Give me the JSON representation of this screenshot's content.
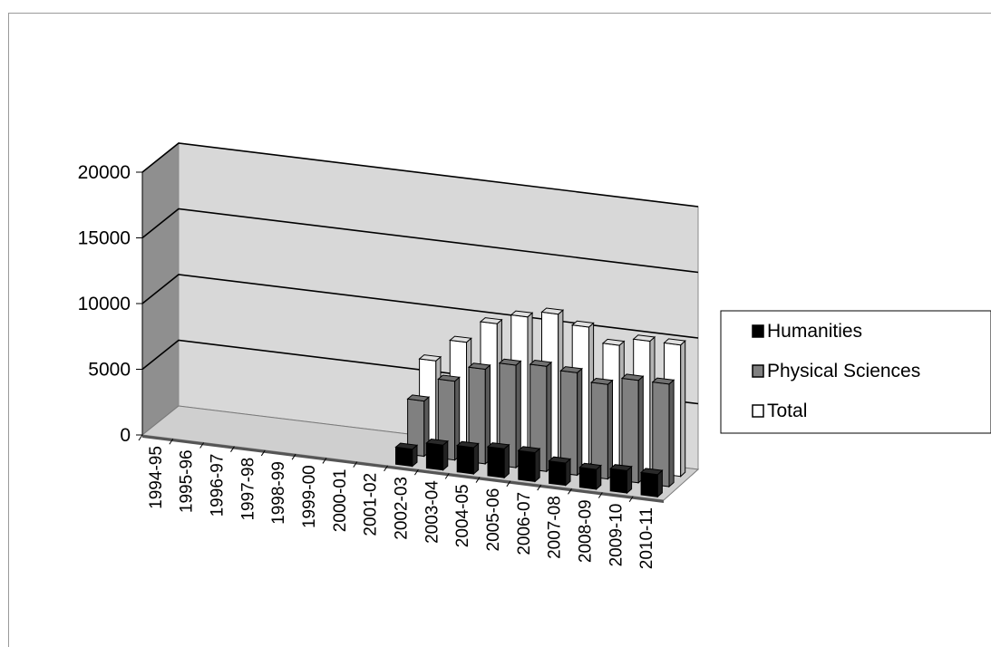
{
  "chart_data": {
    "type": "bar",
    "variant": "3d-clustered-column",
    "categories": [
      "1994-95",
      "1995-96",
      "1996-97",
      "1997-98",
      "1998-99",
      "1999-00",
      "2000-01",
      "2001-02",
      "2002-03",
      "2003-04",
      "2004-05",
      "2005-06",
      "2006-07",
      "2007-08",
      "2008-09",
      "2009-10",
      "2010-11"
    ],
    "series": [
      {
        "name": "Humanities",
        "color": "#000000",
        "values": [
          null,
          null,
          null,
          null,
          null,
          null,
          null,
          null,
          1300,
          1900,
          2000,
          2200,
          2200,
          1700,
          1500,
          1700,
          1700
        ]
      },
      {
        "name": "Physical Sciences",
        "color": "#808080",
        "values": [
          null,
          null,
          null,
          null,
          null,
          null,
          null,
          null,
          4200,
          6000,
          7200,
          7800,
          8000,
          7800,
          7200,
          7800,
          7800
        ]
      },
      {
        "name": "Total",
        "color": "#ffffff",
        "values": [
          null,
          null,
          null,
          null,
          null,
          null,
          null,
          null,
          6500,
          8200,
          9900,
          10700,
          11200,
          10500,
          9400,
          10000,
          10000
        ]
      }
    ],
    "y_ticks": [
      "0",
      "5000",
      "10000",
      "15000",
      "20000"
    ],
    "ylim": [
      0,
      20000
    ],
    "grid": true,
    "legend_position": "right"
  }
}
